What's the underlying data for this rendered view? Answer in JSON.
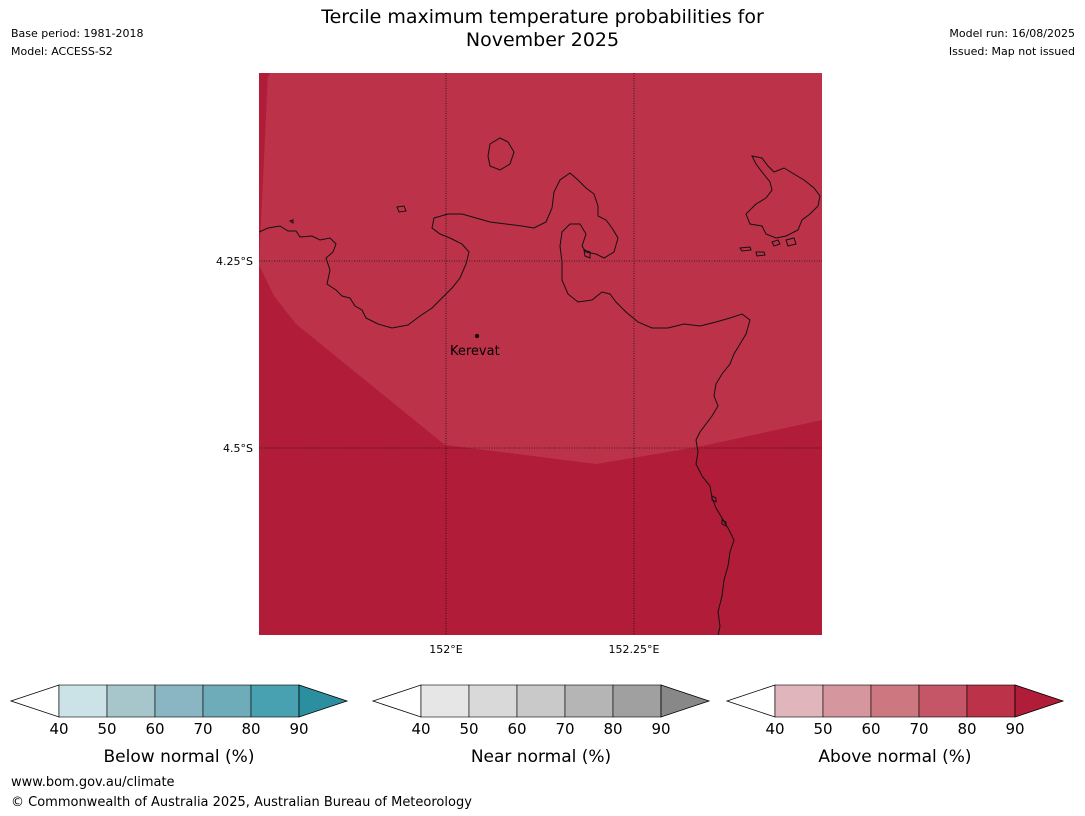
{
  "header": {
    "title_line1": "Tercile maximum temperature probabilities for",
    "title_line2": "November 2025",
    "base_period": "Base period: 1981-2018",
    "model": "Model: ACCESS-S2",
    "model_run": "Model run: 16/08/2025",
    "issued": "Issued: Map not issued"
  },
  "map": {
    "lat_labels": [
      "4.25°S",
      "4.5°S"
    ],
    "lon_labels": [
      "152°E",
      "152.25°E"
    ],
    "place": "Kerevat",
    "region_colors": {
      "70_80": "#bc3249",
      "80_90": "#b11c39"
    }
  },
  "colorbars": [
    {
      "title": "Below normal (%)",
      "ticks": [
        "40",
        "50",
        "60",
        "70",
        "80",
        "90"
      ],
      "colors": [
        "#ffffff",
        "#cbe2e7",
        "#a7c6cc",
        "#8ab6c3",
        "#6eacba",
        "#47a1b0",
        "#2c8fa0"
      ]
    },
    {
      "title": "Near normal (%)",
      "ticks": [
        "40",
        "50",
        "60",
        "70",
        "80",
        "90"
      ],
      "colors": [
        "#ffffff",
        "#e6e6e6",
        "#d9d9d9",
        "#c9c9c9",
        "#b5b5b5",
        "#a0a0a0",
        "#888888"
      ]
    },
    {
      "title": "Above normal (%)",
      "ticks": [
        "40",
        "50",
        "60",
        "70",
        "80",
        "90"
      ],
      "colors": [
        "#ffffff",
        "#e0b6bc",
        "#d5969e",
        "#cd7880",
        "#c55667",
        "#bc3249",
        "#b11c39"
      ]
    }
  ],
  "footer": {
    "url": "www.bom.gov.au/climate",
    "copyright": "© Commonwealth of Australia 2025, Australian Bureau of Meteorology"
  }
}
